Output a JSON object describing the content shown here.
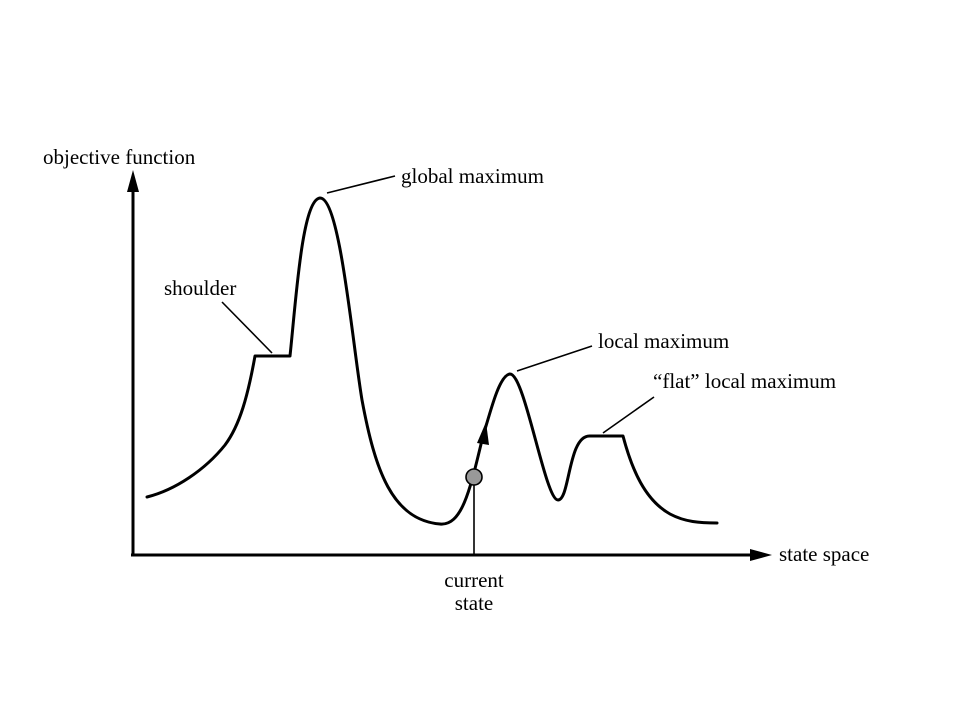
{
  "diagram": {
    "axis_y_label": "objective function",
    "axis_x_label": "state space",
    "labels": {
      "global_maximum": "global maximum",
      "shoulder": "shoulder",
      "local_maximum": "local maximum",
      "flat_local_maximum": "“flat” local maximum",
      "current_state_line1": "current",
      "current_state_line2": "state"
    },
    "colors": {
      "stroke": "#000000",
      "marker_fill": "#999999",
      "background": "#ffffff"
    }
  }
}
